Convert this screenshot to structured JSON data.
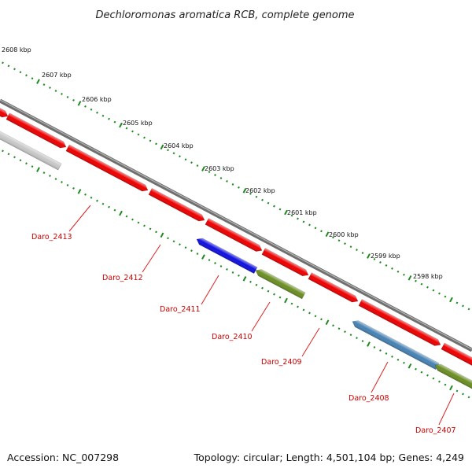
{
  "title": "Dechloromonas aromatica RCB, complete genome",
  "footer": {
    "accession": "Accession: NC_007298",
    "topology": "Topology: circular; Length: 4,501,104 bp; Genes: 4,249"
  },
  "colors": {
    "backbone": "#7a7a7a",
    "forward_gene": "#ee0000",
    "tick_dots": "#1d8a1d",
    "label_text": "#cc0000",
    "leader_line": "#dd2222"
  },
  "kbp_ticks": [
    "2608 kbp",
    "2607 kbp",
    "2606 kbp",
    "2605 kbp",
    "2604 kbp",
    "2603 kbp",
    "2602 kbp",
    "2601 kbp",
    "2600 kbp",
    "2599 kbp",
    "2598 kbp"
  ],
  "forward_genes": [
    {
      "id": "fwd-0",
      "color": "#ee0000"
    },
    {
      "id": "fwd-1",
      "color": "#ee0000"
    },
    {
      "id": "fwd-2",
      "color": "#ee0000"
    },
    {
      "id": "fwd-3",
      "color": "#ee0000"
    },
    {
      "id": "fwd-4",
      "color": "#ee0000"
    },
    {
      "id": "fwd-5",
      "color": "#ee0000"
    },
    {
      "id": "fwd-6",
      "color": "#ee0000"
    },
    {
      "id": "fwd-7",
      "color": "#ee0000"
    },
    {
      "id": "fwd-8",
      "color": "#ee0000"
    }
  ],
  "reverse_genes": [
    {
      "id": "rev-grey",
      "color": "#c8c8c8"
    },
    {
      "id": "rev-2411",
      "color": "#1010e0"
    },
    {
      "id": "rev-2410",
      "color": "#6b8e23"
    },
    {
      "id": "rev-2408",
      "color": "#4682b4"
    },
    {
      "id": "rev-2407",
      "color": "#6b8e23"
    }
  ],
  "gene_labels": [
    "Daro_2413",
    "Daro_2412",
    "Daro_2411",
    "Daro_2410",
    "Daro_2409",
    "Daro_2408",
    "Daro_2407"
  ]
}
